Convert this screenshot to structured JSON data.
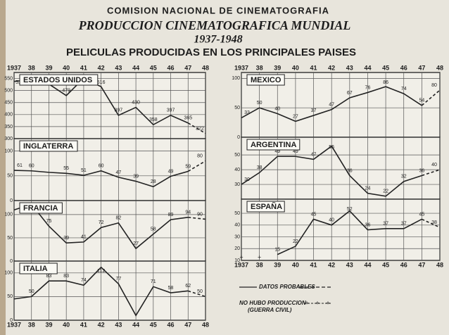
{
  "header": {
    "organization": "COMISION NACIONAL DE CINEMATOGRAFIA",
    "title": "PRODUCCION CINEMATOGRAFICA MUNDIAL",
    "period": "1937-1948",
    "subtitle": "PELICULAS PRODUCIDAS EN LOS PRINCIPALES PAISES"
  },
  "legend": {
    "probable": "DATOS PROBABLES",
    "no_production": "NO HUBO PRODUCCION",
    "no_production_note": "(GUERRA CIVIL)"
  },
  "chart_data": [
    {
      "type": "line",
      "title": "ESTADOS UNIDOS",
      "xaxis_position": "top",
      "x": [
        1937,
        1938,
        1939,
        1940,
        1941,
        1942,
        1943,
        1944,
        1945,
        1946,
        1947,
        1948
      ],
      "xticks": [
        1937,
        {
          "value": 1938,
          "label": "38"
        },
        {
          "value": 1939,
          "label": "39"
        },
        {
          "value": 1940,
          "label": "40"
        },
        {
          "value": 1941,
          "label": "41"
        },
        {
          "value": 1942,
          "label": "42"
        },
        {
          "value": 1943,
          "label": "43"
        },
        {
          "value": 1944,
          "label": "44"
        },
        {
          "value": 1945,
          "label": "45"
        },
        {
          "value": 1946,
          "label": "46"
        },
        {
          "value": 1947,
          "label": "47"
        },
        {
          "value": 1948,
          "label": "48"
        }
      ],
      "values": [
        538,
        545,
        527,
        479,
        551,
        516,
        397,
        430,
        358,
        397,
        365,
        322
      ],
      "color": "#222222",
      "ylim": [
        300,
        575
      ],
      "yticks": [
        300,
        350,
        400,
        450,
        500,
        550
      ]
    },
    {
      "type": "line",
      "title": "INGLATERRA",
      "x": [
        1937,
        1938,
        1939,
        1940,
        1941,
        1942,
        1943,
        1944,
        1945,
        1946,
        1947,
        1948
      ],
      "values": [
        61,
        60,
        57,
        55,
        51,
        60,
        47,
        39,
        28,
        49,
        59,
        80
      ],
      "value_labels": [
        "61",
        "60",
        null,
        "55",
        "51",
        "60",
        "47",
        "39",
        "28",
        "49",
        "59",
        "80"
      ],
      "color": "#222222",
      "ylim": [
        0,
        125
      ],
      "yticks": [
        0,
        50,
        100
      ]
    },
    {
      "type": "line",
      "title": "FRANCIA",
      "x": [
        1937,
        1938,
        1939,
        1940,
        1941,
        1942,
        1943,
        1944,
        1945,
        1946,
        1947,
        1948
      ],
      "values": [
        110,
        122,
        75,
        39,
        41,
        72,
        82,
        27,
        58,
        89,
        94,
        90
      ],
      "value_labels": [
        null,
        "122",
        "75",
        "39",
        "41",
        "72",
        "82",
        "27",
        "58",
        "89",
        "94",
        "90"
      ],
      "color": "#222222",
      "ylim": [
        0,
        130
      ],
      "yticks": [
        0,
        50,
        100
      ]
    },
    {
      "type": "line",
      "title": "ITALIA",
      "xaxis_position": "bottom",
      "x": [
        1937,
        1938,
        1939,
        1940,
        1941,
        1942,
        1943,
        1944,
        1945,
        1946,
        1947,
        1948
      ],
      "xticks": [
        1937,
        {
          "value": 1938,
          "label": "38"
        },
        {
          "value": 1939,
          "label": "39"
        },
        {
          "value": 1940,
          "label": "40"
        },
        {
          "value": 1941,
          "label": "41"
        },
        {
          "value": 1942,
          "label": "42"
        },
        {
          "value": 1943,
          "label": "43"
        },
        {
          "value": 1944,
          "label": "44"
        },
        {
          "value": 1945,
          "label": "45"
        },
        {
          "value": 1946,
          "label": "46"
        },
        {
          "value": 1947,
          "label": "47"
        },
        {
          "value": 1948,
          "label": "48"
        }
      ],
      "values": [
        45,
        50,
        83,
        83,
        74,
        112,
        77,
        10,
        71,
        58,
        62,
        50
      ],
      "value_labels": [
        null,
        "50",
        "83",
        "83",
        "74",
        "112",
        "77",
        null,
        "71",
        "58",
        "62",
        "50"
      ],
      "color": "#222222",
      "ylim": [
        0,
        125
      ],
      "yticks": [
        0,
        50,
        100
      ]
    },
    {
      "type": "line",
      "title": "MEXICO",
      "xaxis_position": "top",
      "x": [
        1937,
        1938,
        1939,
        1940,
        1941,
        1942,
        1943,
        1944,
        1945,
        1946,
        1947,
        1948
      ],
      "xticks": [
        1937,
        {
          "value": 1938,
          "label": "38"
        },
        {
          "value": 1939,
          "label": "39"
        },
        {
          "value": 1940,
          "label": "40"
        },
        {
          "value": 1941,
          "label": "41"
        },
        {
          "value": 1942,
          "label": "42"
        },
        {
          "value": 1943,
          "label": "43"
        },
        {
          "value": 1944,
          "label": "44"
        },
        {
          "value": 1945,
          "label": "45"
        },
        {
          "value": 1946,
          "label": "46"
        },
        {
          "value": 1947,
          "label": "47"
        },
        {
          "value": 1948,
          "label": "48"
        }
      ],
      "values": [
        33,
        50,
        40,
        27,
        37,
        47,
        67,
        76,
        86,
        74,
        54,
        80
      ],
      "color": "#222222",
      "ylim": [
        0,
        110
      ],
      "yticks": [
        0,
        50,
        100
      ]
    },
    {
      "type": "line",
      "title": "ARGENTINA",
      "x": [
        1937,
        1938,
        1939,
        1940,
        1941,
        1942,
        1943,
        1944,
        1945,
        1946,
        1947,
        1948
      ],
      "values": [
        30,
        38,
        49,
        49,
        47,
        56,
        36,
        24,
        22,
        32,
        36,
        40
      ],
      "color": "#222222",
      "ylim": [
        20,
        62
      ],
      "yticks": [
        30,
        40,
        50
      ]
    },
    {
      "type": "line",
      "title": "ESPAÑA",
      "xaxis_position": "bottom",
      "x": [
        1937,
        1938,
        1939,
        1940,
        1941,
        1942,
        1943,
        1944,
        1945,
        1946,
        1947,
        1948
      ],
      "xticks": [
        1937,
        {
          "value": 1938,
          "label": "38"
        },
        {
          "value": 1939,
          "label": "39"
        },
        {
          "value": 1940,
          "label": "40"
        },
        {
          "value": 1941,
          "label": "41"
        },
        {
          "value": 1942,
          "label": "42"
        },
        {
          "value": 1943,
          "label": "43"
        },
        {
          "value": 1944,
          "label": "44"
        },
        {
          "value": 1945,
          "label": "45"
        },
        {
          "value": 1946,
          "label": "46"
        },
        {
          "value": 1947,
          "label": "47"
        },
        {
          "value": 1948,
          "label": "48"
        }
      ],
      "values": [
        null,
        null,
        15,
        22,
        45,
        40,
        52,
        36,
        37,
        37,
        45,
        38
      ],
      "color": "#222222",
      "ylim": [
        10,
        62
      ],
      "yticks": [
        10,
        20,
        30,
        40,
        50
      ]
    }
  ]
}
